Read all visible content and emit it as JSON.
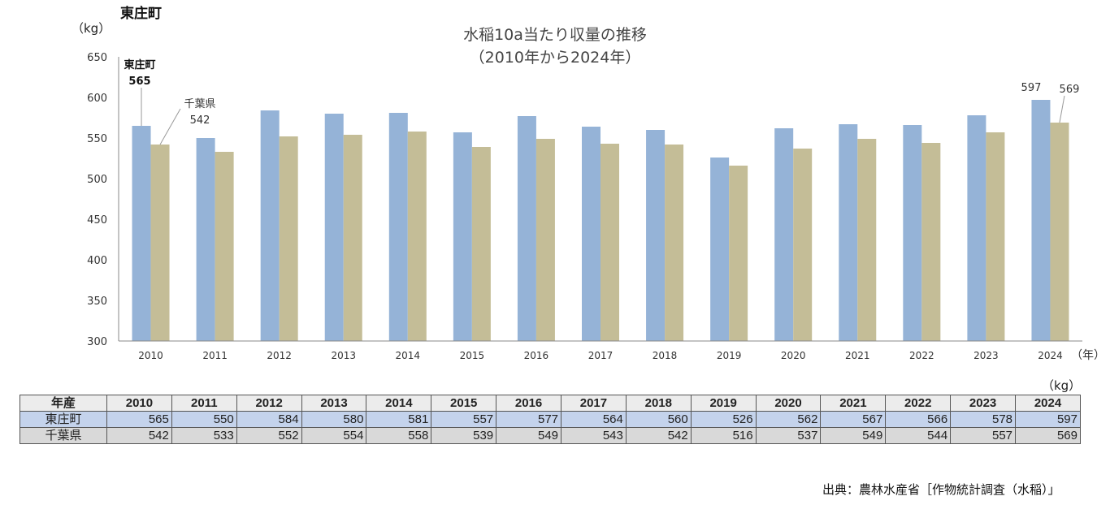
{
  "header": {
    "corner_title": "東庄町",
    "title_line1": "水稲10a当たり収量の推移",
    "title_line2": "（2010年から2024年）",
    "y_unit": "（kg）",
    "x_unit": "（年）"
  },
  "chart_data": {
    "type": "bar",
    "title": "水稲10a当たり収量の推移（2010年から2024年）",
    "ylabel": "（kg）",
    "xlabel": "（年）",
    "ylim": [
      300,
      650
    ],
    "yticks": [
      "300",
      "350",
      "400",
      "450",
      "500",
      "550",
      "600",
      "650"
    ],
    "categories": [
      "2010",
      "2011",
      "2012",
      "2013",
      "2014",
      "2015",
      "2016",
      "2017",
      "2018",
      "2019",
      "2020",
      "2021",
      "2022",
      "2023",
      "2024"
    ],
    "series": [
      {
        "name": "東庄町",
        "color": "#95b3d7",
        "values": [
          565,
          550,
          584,
          580,
          581,
          557,
          577,
          564,
          560,
          526,
          562,
          567,
          566,
          578,
          597
        ]
      },
      {
        "name": "千葉県",
        "color": "#c4bd97",
        "values": [
          542,
          533,
          552,
          554,
          558,
          539,
          549,
          543,
          542,
          516,
          537,
          549,
          544,
          557,
          569
        ]
      }
    ],
    "annotations": {
      "first_town_name": "東庄町",
      "first_town_value": "565",
      "first_pref_name": "千葉県",
      "first_pref_value": "542",
      "last_town_value": "597",
      "last_pref_value": "569"
    },
    "grid": false,
    "legend": "none"
  },
  "table": {
    "unit": "（kg）",
    "corner_label": "年産",
    "row_town_label": "東庄町",
    "row_pref_label": "千葉県"
  },
  "source": "出典：農林水産省［作物統計調査（水稲）」"
}
